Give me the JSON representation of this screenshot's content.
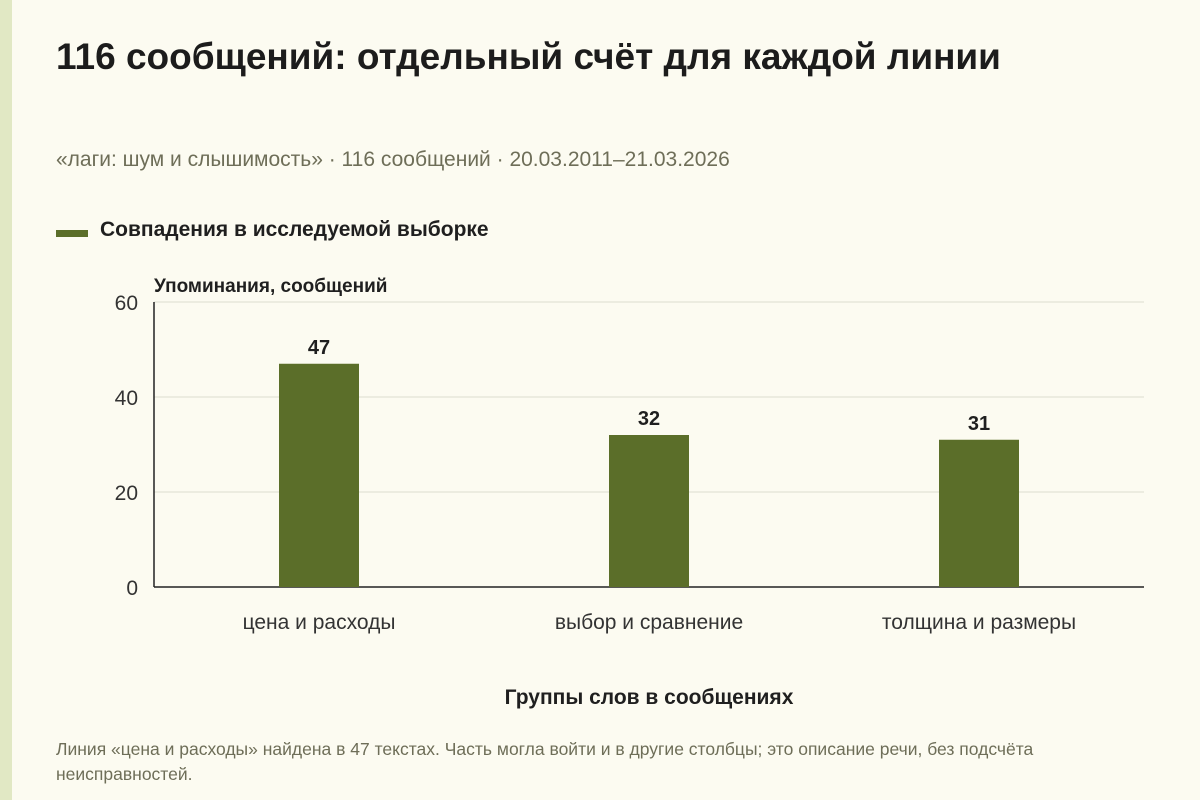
{
  "title": "116 сообщений: отдельный счёт для каждой линии",
  "subtitle": "«лаги: шум и слышимость» · 116 сообщений · 20.03.2011–21.03.2026",
  "legend": {
    "label": "Совпадения в исследуемой выборке",
    "color": "#5b6e29"
  },
  "footnote": "Линия «цена и расходы» найдена в 47 текстах. Часть могла войти и в другие столбцы; это описание речи, без подсчёта неисправностей.",
  "chart_data": {
    "type": "bar",
    "title": "116 сообщений: отдельный счёт для каждой линии",
    "categories": [
      "цена и расходы",
      "выбор и сравнение",
      "толщина и размеры"
    ],
    "series": [
      {
        "name": "Совпадения в исследуемой выборке",
        "values": [
          47,
          32,
          31
        ],
        "color": "#5b6e29"
      }
    ],
    "data_labels": [
      "47",
      "32",
      "31"
    ],
    "xlabel": "Группы слов в сообщениях",
    "ylabel": "Упоминания, сообщений",
    "ylim": [
      0,
      60
    ],
    "yticks": [
      0,
      20,
      40,
      60
    ],
    "grid": true,
    "legend_position": "top-left"
  }
}
